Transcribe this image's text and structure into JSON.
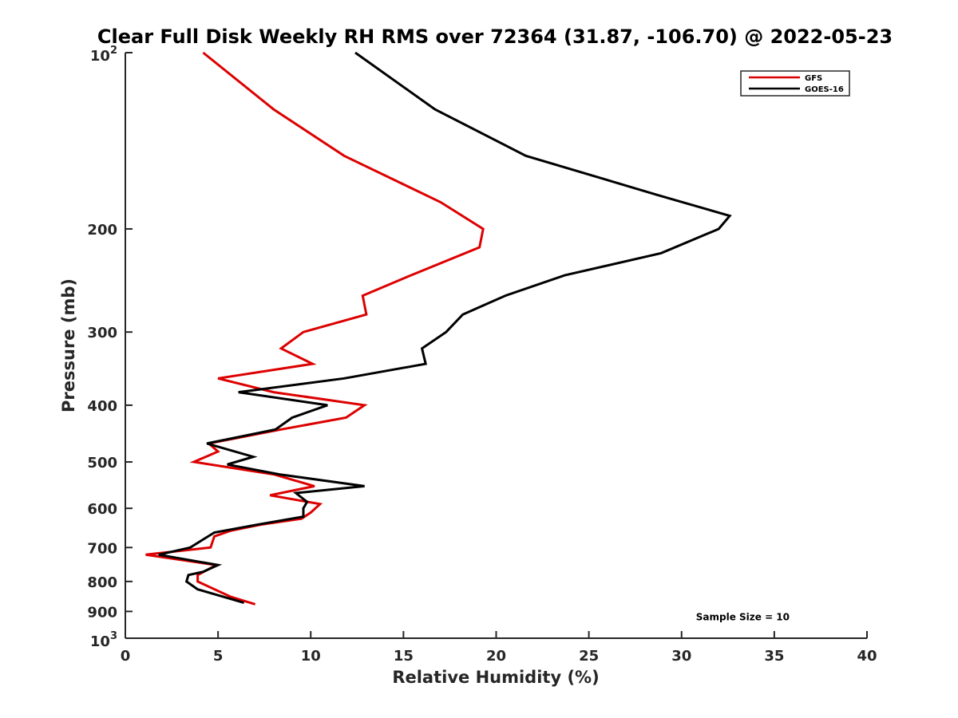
{
  "chart_data": {
    "type": "line",
    "title": "Clear Full Disk Weekly RH RMS over 72364 (31.87, -106.70) @ 2022-05-23",
    "xlabel": "Relative Humidity (%)",
    "ylabel": "Pressure (mb)",
    "xlim": [
      0,
      40
    ],
    "ylim": [
      100,
      1000
    ],
    "y_scale": "log",
    "y_reversed": true,
    "grid": false,
    "legend_position": "top-right",
    "x_ticks": [
      "0",
      "5",
      "10",
      "15",
      "20",
      "25",
      "30",
      "35",
      "40"
    ],
    "y_ticks": [
      {
        "value": 100,
        "base": "10",
        "exp": "2"
      },
      {
        "value": 200,
        "label": "200"
      },
      {
        "value": 300,
        "label": "300"
      },
      {
        "value": 400,
        "label": "400"
      },
      {
        "value": 500,
        "label": "500"
      },
      {
        "value": 600,
        "label": "600"
      },
      {
        "value": 700,
        "label": "700"
      },
      {
        "value": 800,
        "label": "800"
      },
      {
        "value": 900,
        "label": "900"
      },
      {
        "value": 1000,
        "base": "10",
        "exp": "3"
      }
    ],
    "series": [
      {
        "name": "GFS",
        "color": "#dd0000",
        "points": [
          [
            4.2,
            100
          ],
          [
            8.0,
            125
          ],
          [
            11.8,
            150
          ],
          [
            17.0,
            180
          ],
          [
            19.3,
            200
          ],
          [
            19.1,
            215
          ],
          [
            15.4,
            240
          ],
          [
            12.8,
            260
          ],
          [
            13.0,
            280
          ],
          [
            9.6,
            300
          ],
          [
            8.4,
            320
          ],
          [
            10.1,
            340
          ],
          [
            5.0,
            360
          ],
          [
            8.0,
            380
          ],
          [
            12.9,
            400
          ],
          [
            11.9,
            420
          ],
          [
            8.4,
            440
          ],
          [
            4.5,
            465
          ],
          [
            5.0,
            480
          ],
          [
            3.7,
            500
          ],
          [
            8.0,
            525
          ],
          [
            10.2,
            550
          ],
          [
            7.8,
            570
          ],
          [
            10.5,
            590
          ],
          [
            10.0,
            610
          ],
          [
            9.5,
            625
          ],
          [
            7.3,
            640
          ],
          [
            5.7,
            655
          ],
          [
            4.8,
            670
          ],
          [
            4.6,
            700
          ],
          [
            1.1,
            720
          ],
          [
            4.9,
            750
          ],
          [
            3.9,
            780
          ],
          [
            3.9,
            800
          ],
          [
            5.7,
            850
          ],
          [
            7.0,
            875
          ]
        ]
      },
      {
        "name": "GOES-16",
        "color": "#000000",
        "points": [
          [
            12.4,
            100
          ],
          [
            16.7,
            125
          ],
          [
            21.6,
            150
          ],
          [
            28.7,
            175
          ],
          [
            32.6,
            190
          ],
          [
            32.0,
            200
          ],
          [
            28.9,
            220
          ],
          [
            23.7,
            240
          ],
          [
            20.5,
            260
          ],
          [
            18.2,
            280
          ],
          [
            17.3,
            300
          ],
          [
            16.0,
            320
          ],
          [
            16.2,
            340
          ],
          [
            11.8,
            360
          ],
          [
            6.1,
            380
          ],
          [
            10.9,
            400
          ],
          [
            9.0,
            420
          ],
          [
            8.1,
            440
          ],
          [
            4.4,
            465
          ],
          [
            6.9,
            490
          ],
          [
            5.5,
            505
          ],
          [
            8.3,
            525
          ],
          [
            12.9,
            550
          ],
          [
            9.2,
            565
          ],
          [
            9.8,
            585
          ],
          [
            9.6,
            600
          ],
          [
            9.6,
            620
          ],
          [
            7.1,
            640
          ],
          [
            4.8,
            660
          ],
          [
            3.5,
            700
          ],
          [
            1.8,
            720
          ],
          [
            5.0,
            750
          ],
          [
            4.2,
            770
          ],
          [
            3.4,
            780
          ],
          [
            3.3,
            800
          ],
          [
            3.9,
            825
          ],
          [
            6.4,
            870
          ]
        ]
      }
    ],
    "annotations": [
      {
        "text": "Sample Size = 10",
        "x": 33.3,
        "y": 920
      }
    ]
  }
}
